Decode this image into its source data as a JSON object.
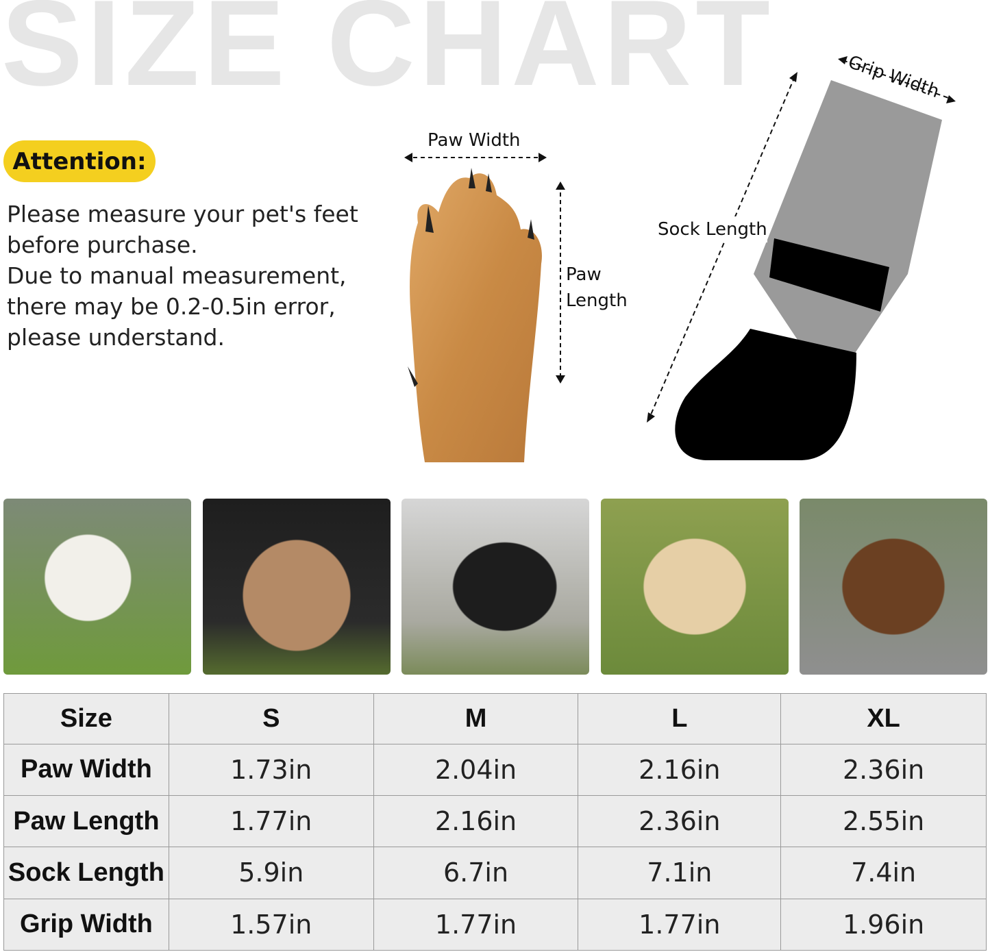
{
  "title": "SIZE CHART",
  "attention": {
    "badge": "Attention:",
    "lines": [
      "Please measure your pet's feet",
      "before purchase.",
      "Due to manual measurement,",
      "there may be 0.2-0.5in error,",
      "please understand."
    ]
  },
  "diagram": {
    "paw_width": "Paw Width",
    "paw_length_1": "Paw",
    "paw_length_2": "Length",
    "sock_length": "Sock Length",
    "grip_width": "Grip Width"
  },
  "photos": [
    "west-highland-terrier",
    "french-bulldog",
    "border-collie",
    "golden-retriever",
    "german-shepherd"
  ],
  "colors": {
    "badge": "#f4cf1f",
    "table_bg": "#ececec",
    "title": "#e6e6e6"
  },
  "table": {
    "header": [
      "Size",
      "S",
      "M",
      "L",
      "XL"
    ],
    "rows": [
      [
        "Paw Width",
        "1.73in",
        "2.04in",
        "2.16in",
        "2.36in"
      ],
      [
        "Paw Length",
        "1.77in",
        "2.16in",
        "2.36in",
        "2.55in"
      ],
      [
        "Sock Length",
        "5.9in",
        "6.7in",
        "7.1in",
        "7.4in"
      ],
      [
        "Grip Width",
        "1.57in",
        "1.77in",
        "1.77in",
        "1.96in"
      ]
    ]
  }
}
